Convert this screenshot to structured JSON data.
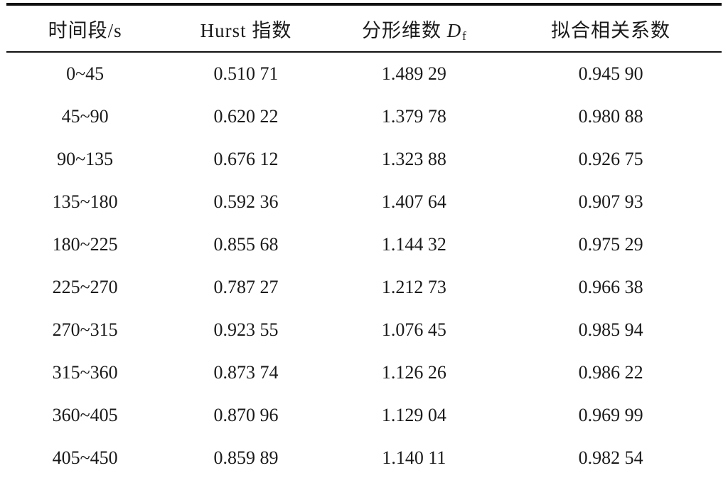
{
  "table": {
    "col1_header": "时间段/s",
    "col2_header": "Hurst 指数",
    "col3_header": {
      "prefix": "分形维数 ",
      "symbol": "D",
      "subscript": "f"
    },
    "col4_header": "拟合相关系数",
    "rows": [
      [
        "0~45",
        "0.510 71",
        "1.489 29",
        "0.945 90"
      ],
      [
        "45~90",
        "0.620 22",
        "1.379 78",
        "0.980 88"
      ],
      [
        "90~135",
        "0.676 12",
        "1.323 88",
        "0.926 75"
      ],
      [
        "135~180",
        "0.592 36",
        "1.407 64",
        "0.907 93"
      ],
      [
        "180~225",
        "0.855 68",
        "1.144 32",
        "0.975 29"
      ],
      [
        "225~270",
        "0.787 27",
        "1.212 73",
        "0.966 38"
      ],
      [
        "270~315",
        "0.923 55",
        "1.076 45",
        "0.985 94"
      ],
      [
        "315~360",
        "0.873 74",
        "1.126 26",
        "0.986 22"
      ],
      [
        "360~405",
        "0.870 96",
        "1.129 04",
        "0.969 99"
      ],
      [
        "405~450",
        "0.859 89",
        "1.140 11",
        "0.982 54"
      ]
    ]
  }
}
